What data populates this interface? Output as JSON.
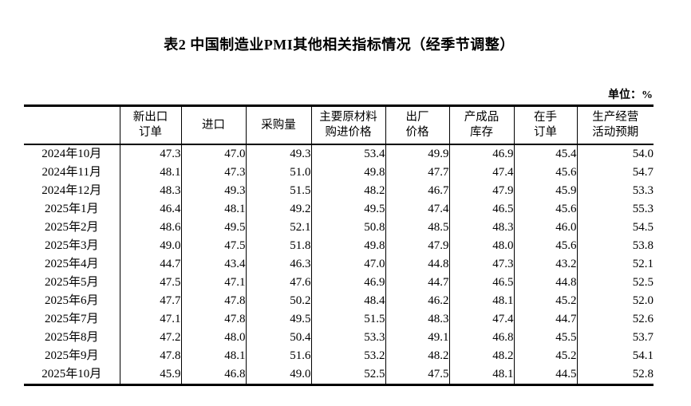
{
  "page": {
    "title": "表2 中国制造业PMI其他相关指标情况（经季节调整）",
    "unit_label": "单位：%"
  },
  "table": {
    "columns": [
      "",
      "新出口\n订单",
      "进口",
      "采购量",
      "主要原材料\n购进价格",
      "出厂\n价格",
      "产成品\n库存",
      "在手\n订单",
      "生产经营\n活动预期"
    ],
    "rows": [
      {
        "month": "2024年10月",
        "values": [
          "47.3",
          "47.0",
          "49.3",
          "53.4",
          "49.9",
          "46.9",
          "45.4",
          "54.0"
        ]
      },
      {
        "month": "2024年11月",
        "values": [
          "48.1",
          "47.3",
          "51.0",
          "49.8",
          "47.7",
          "47.4",
          "45.6",
          "54.7"
        ]
      },
      {
        "month": "2024年12月",
        "values": [
          "48.3",
          "49.3",
          "51.5",
          "48.2",
          "46.7",
          "47.9",
          "45.9",
          "53.3"
        ]
      },
      {
        "month": "2025年1月",
        "values": [
          "46.4",
          "48.1",
          "49.2",
          "49.5",
          "47.4",
          "46.5",
          "45.6",
          "55.3"
        ]
      },
      {
        "month": "2025年2月",
        "values": [
          "48.6",
          "49.5",
          "52.1",
          "50.8",
          "48.5",
          "48.3",
          "46.0",
          "54.5"
        ]
      },
      {
        "month": "2025年3月",
        "values": [
          "49.0",
          "47.5",
          "51.8",
          "49.8",
          "47.9",
          "48.0",
          "45.6",
          "53.8"
        ]
      },
      {
        "month": "2025年4月",
        "values": [
          "44.7",
          "43.4",
          "46.3",
          "47.0",
          "44.8",
          "47.3",
          "43.2",
          "52.1"
        ]
      },
      {
        "month": "2025年5月",
        "values": [
          "47.5",
          "47.1",
          "47.6",
          "46.9",
          "44.7",
          "46.5",
          "44.8",
          "52.5"
        ]
      },
      {
        "month": "2025年6月",
        "values": [
          "47.7",
          "47.8",
          "50.2",
          "48.4",
          "46.2",
          "48.1",
          "45.2",
          "52.0"
        ]
      },
      {
        "month": "2025年7月",
        "values": [
          "47.1",
          "47.8",
          "49.5",
          "51.5",
          "48.3",
          "47.4",
          "44.7",
          "52.6"
        ]
      },
      {
        "month": "2025年8月",
        "values": [
          "47.2",
          "48.0",
          "50.4",
          "53.3",
          "49.1",
          "46.8",
          "45.5",
          "53.7"
        ]
      },
      {
        "month": "2025年9月",
        "values": [
          "47.8",
          "48.1",
          "51.6",
          "53.2",
          "48.2",
          "48.2",
          "45.2",
          "54.1"
        ]
      },
      {
        "month": "2025年10月",
        "values": [
          "45.9",
          "46.8",
          "49.0",
          "52.5",
          "47.5",
          "48.1",
          "44.5",
          "52.8"
        ]
      }
    ]
  }
}
